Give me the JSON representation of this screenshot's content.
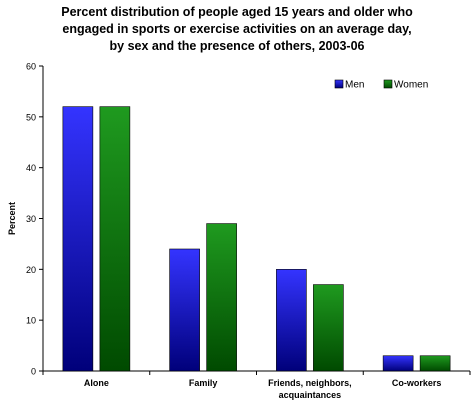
{
  "chart_data": {
    "type": "bar",
    "title_lines": [
      "Percent distribution of people aged 15 years and older who",
      "engaged in sports or exercise activities on an average day,",
      "by sex and the presence of others, 2003-06"
    ],
    "xlabel": "",
    "ylabel": "Percent",
    "ylim": [
      0,
      60
    ],
    "yticks": [
      0,
      10,
      20,
      30,
      40,
      50,
      60
    ],
    "grid": false,
    "legend_position": "top-right",
    "categories": [
      [
        "Alone"
      ],
      [
        "Family"
      ],
      [
        "Friends, neighbors,",
        "acquaintances"
      ],
      [
        "Co-workers"
      ]
    ],
    "series": [
      {
        "name": "Men",
        "color": "#0000ff",
        "values": [
          52,
          24,
          20,
          3
        ]
      },
      {
        "name": "Women",
        "color": "#008000",
        "values": [
          52,
          29,
          17,
          3
        ]
      }
    ]
  }
}
